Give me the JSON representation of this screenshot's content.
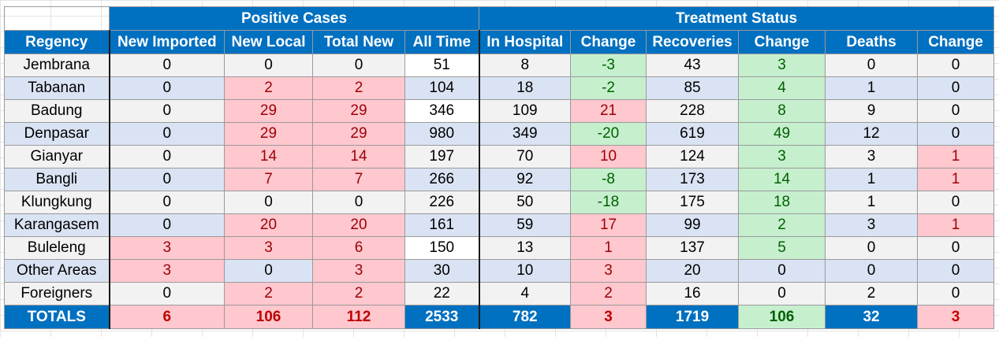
{
  "colors": {
    "header_blue": "#0070c0",
    "header_text": "#ffffff",
    "row_gray": "#f2f2f2",
    "row_blue": "#dae3f3",
    "increase_fill": "#ffc7ce",
    "increase_text": "#9c0006",
    "decrease_fill": "#c6efce",
    "decrease_text": "#006100"
  },
  "groups": {
    "positive": "Positive Cases",
    "treatment": "Treatment Status"
  },
  "columns": [
    "Regency",
    "New Imported",
    "New Local",
    "Total New",
    "All Time",
    "In Hospital",
    "Change",
    "Recoveries",
    "Change",
    "Deaths",
    "Change"
  ],
  "rows": [
    {
      "cells": [
        "Jembrana",
        "0",
        "0",
        "0",
        "51",
        "8",
        "-3",
        "43",
        "3",
        "0",
        "0"
      ],
      "styles": [
        "",
        "",
        "",
        "",
        "white",
        "",
        "green",
        "",
        "green",
        "",
        ""
      ]
    },
    {
      "cells": [
        "Tabanan",
        "0",
        "2",
        "2",
        "104",
        "18",
        "-2",
        "85",
        "4",
        "1",
        "0"
      ],
      "styles": [
        "",
        "",
        "red",
        "red",
        "",
        "",
        "green",
        "",
        "green",
        "",
        ""
      ]
    },
    {
      "cells": [
        "Badung",
        "0",
        "29",
        "29",
        "346",
        "109",
        "21",
        "228",
        "8",
        "9",
        "0"
      ],
      "styles": [
        "",
        "",
        "red",
        "red",
        "white",
        "",
        "red",
        "",
        "green",
        "",
        ""
      ]
    },
    {
      "cells": [
        "Denpasar",
        "0",
        "29",
        "29",
        "980",
        "349",
        "-20",
        "619",
        "49",
        "12",
        "0"
      ],
      "styles": [
        "",
        "",
        "red",
        "red",
        "",
        "",
        "green",
        "",
        "green",
        "",
        ""
      ]
    },
    {
      "cells": [
        "Gianyar",
        "0",
        "14",
        "14",
        "197",
        "70",
        "10",
        "124",
        "3",
        "3",
        "1"
      ],
      "styles": [
        "",
        "",
        "red",
        "red",
        "",
        "",
        "red",
        "",
        "green",
        "",
        "red"
      ]
    },
    {
      "cells": [
        "Bangli",
        "0",
        "7",
        "7",
        "266",
        "92",
        "-8",
        "173",
        "14",
        "1",
        "1"
      ],
      "styles": [
        "",
        "",
        "red",
        "red",
        "",
        "",
        "green",
        "",
        "green",
        "",
        "red"
      ]
    },
    {
      "cells": [
        "Klungkung",
        "0",
        "0",
        "0",
        "226",
        "50",
        "-18",
        "175",
        "18",
        "1",
        "0"
      ],
      "styles": [
        "",
        "",
        "",
        "",
        "",
        "",
        "green",
        "",
        "green",
        "",
        ""
      ]
    },
    {
      "cells": [
        "Karangasem",
        "0",
        "20",
        "20",
        "161",
        "59",
        "17",
        "99",
        "2",
        "3",
        "1"
      ],
      "styles": [
        "",
        "",
        "red",
        "red",
        "",
        "",
        "red",
        "",
        "green",
        "",
        "red"
      ]
    },
    {
      "cells": [
        "Buleleng",
        "3",
        "3",
        "6",
        "150",
        "13",
        "1",
        "137",
        "5",
        "0",
        "0"
      ],
      "styles": [
        "",
        "red",
        "red",
        "red",
        "white",
        "",
        "red",
        "",
        "green",
        "",
        ""
      ]
    },
    {
      "cells": [
        "Other Areas",
        "3",
        "0",
        "3",
        "30",
        "10",
        "3",
        "20",
        "0",
        "0",
        "0"
      ],
      "styles": [
        "",
        "red",
        "",
        "red",
        "",
        "",
        "red",
        "",
        "",
        "",
        ""
      ]
    },
    {
      "cells": [
        "Foreigners",
        "0",
        "2",
        "2",
        "22",
        "4",
        "2",
        "16",
        "0",
        "2",
        "0"
      ],
      "styles": [
        "",
        "",
        "red",
        "red",
        "",
        "",
        "red",
        "",
        "",
        "",
        ""
      ]
    }
  ],
  "totals": {
    "cells": [
      "TOTALS",
      "6",
      "106",
      "112",
      "2533",
      "782",
      "3",
      "1719",
      "106",
      "32",
      "3"
    ],
    "styles": [
      "blue",
      "red",
      "red",
      "red",
      "blue",
      "blue",
      "red",
      "blue",
      "green",
      "blue",
      "red"
    ]
  }
}
